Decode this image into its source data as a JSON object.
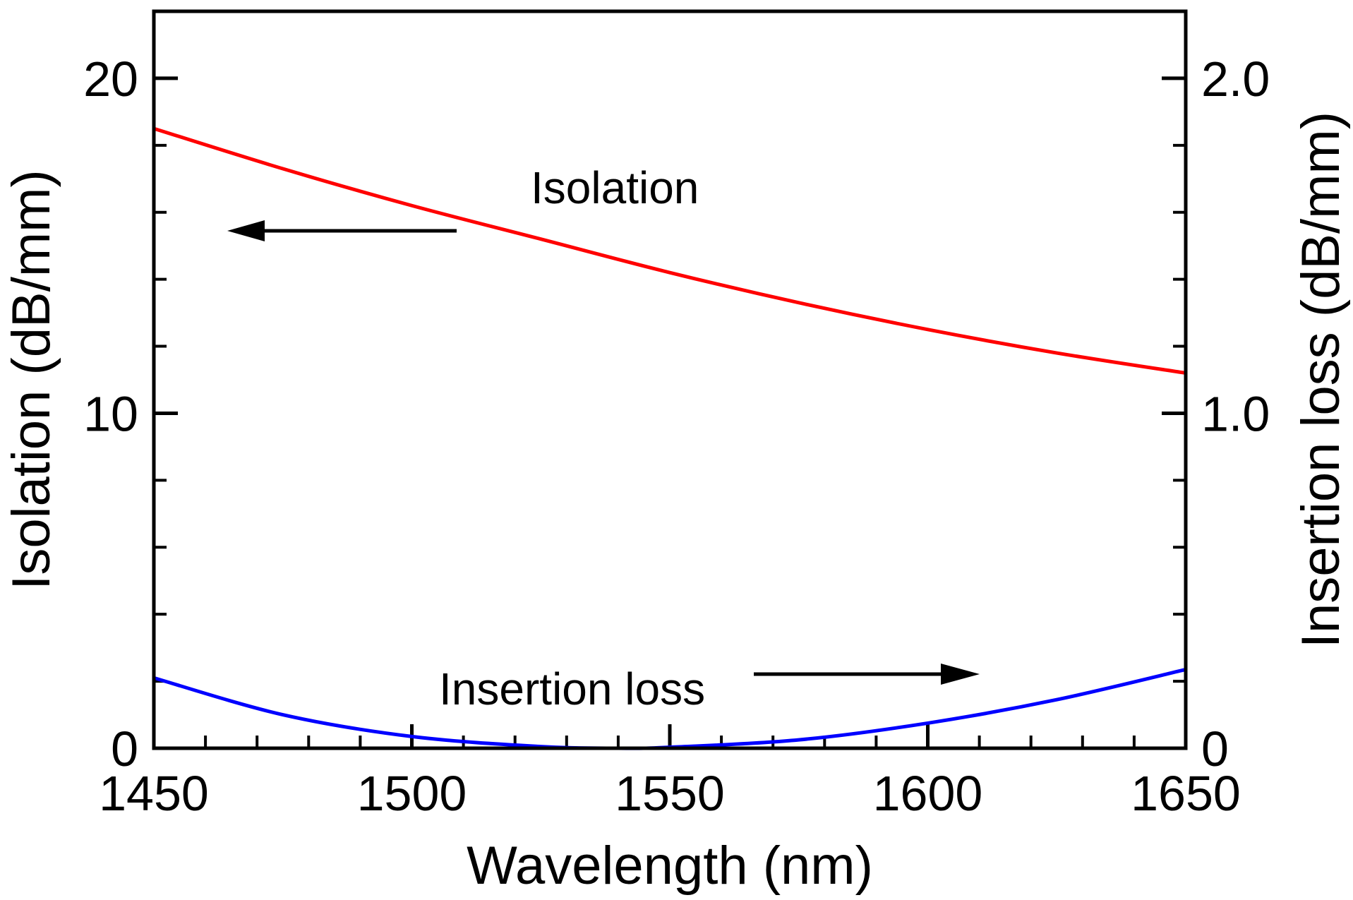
{
  "chart_data": {
    "type": "line",
    "title": "",
    "xlabel": "Wavelength (nm)",
    "ylabel_left": "Isolation (dB/mm)",
    "ylabel_right": "Insertion loss (dB/mm)",
    "xlim": [
      1450,
      1650
    ],
    "ylim_left": [
      0,
      22
    ],
    "ylim_right": [
      0,
      2.2
    ],
    "x_ticks": [
      1450,
      1500,
      1550,
      1600,
      1650
    ],
    "x_tick_labels": [
      "1450",
      "1500",
      "1550",
      "1600",
      "1650"
    ],
    "y_left_ticks": [
      0,
      10,
      20
    ],
    "y_left_tick_labels": [
      "0",
      "10",
      "20"
    ],
    "y_right_ticks": [
      0,
      1.0,
      2.0
    ],
    "y_right_tick_labels": [
      "0",
      "1.0",
      "2.0"
    ],
    "grid": false,
    "series": [
      {
        "name": "Isolation",
        "axis": "left",
        "color": "#ff0000",
        "x": [
          1450,
          1475,
          1500,
          1525,
          1550,
          1575,
          1600,
          1625,
          1650
        ],
        "values": [
          18.5,
          17.3,
          16.2,
          15.2,
          14.2,
          13.3,
          12.5,
          11.8,
          11.2
        ]
      },
      {
        "name": "Insertion loss",
        "axis": "right",
        "color": "#0000ff",
        "x": [
          1450,
          1475,
          1500,
          1525,
          1540,
          1550,
          1575,
          1600,
          1625,
          1650
        ],
        "values": [
          0.21,
          0.1,
          0.035,
          0.005,
          0.0,
          0.003,
          0.025,
          0.075,
          0.145,
          0.235
        ]
      }
    ],
    "annotations": [
      {
        "text": "Isolation",
        "points_to": "left axis"
      },
      {
        "text": "Insertion loss",
        "points_to": "right axis"
      }
    ]
  }
}
